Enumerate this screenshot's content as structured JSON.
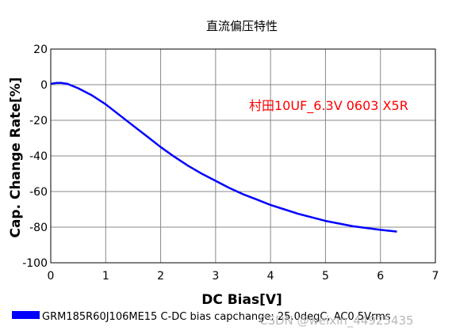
{
  "chart_data": {
    "type": "line",
    "title": "直流偏压特性",
    "xlabel": "DC Bias[V]",
    "ylabel": "Cap. Change Rate[%]",
    "xlim": [
      0,
      7
    ],
    "ylim": [
      -100,
      20
    ],
    "x_ticks": [
      "0",
      "1",
      "2",
      "3",
      "4",
      "5",
      "6",
      "7"
    ],
    "y_ticks": [
      "20",
      "0",
      "-20",
      "-40",
      "-60",
      "-80",
      "-100"
    ],
    "grid": true,
    "annotation": "村田10UF_6.3V 0603 X5R",
    "legend_position": "bottom-left",
    "series": [
      {
        "name": "GRM185R60J106ME15 C-DC bias capchange: 25.0degC, AC0.5Vrms",
        "color": "#0000ff",
        "x": [
          0,
          0.1,
          0.2,
          0.3,
          0.5,
          0.75,
          1.0,
          1.25,
          1.5,
          1.75,
          2.0,
          2.25,
          2.5,
          2.75,
          3.0,
          3.25,
          3.5,
          3.75,
          4.0,
          4.25,
          4.5,
          4.75,
          5.0,
          5.25,
          5.5,
          5.75,
          6.0,
          6.3
        ],
        "y": [
          0.5,
          1,
          1,
          0.5,
          -2,
          -6,
          -11,
          -17,
          -23,
          -29,
          -35,
          -40.5,
          -45.5,
          -50,
          -54,
          -58,
          -61.5,
          -64.5,
          -67.5,
          -70,
          -72.5,
          -74.5,
          -76.5,
          -78,
          -79.5,
          -80.5,
          -81.5,
          -82.5
        ]
      }
    ],
    "colors": {
      "axis": "#000000",
      "grid": "#888888",
      "annotation": "#ff0000",
      "series": "#0000ff"
    }
  },
  "watermark": "CSDN @weixin_44925435"
}
